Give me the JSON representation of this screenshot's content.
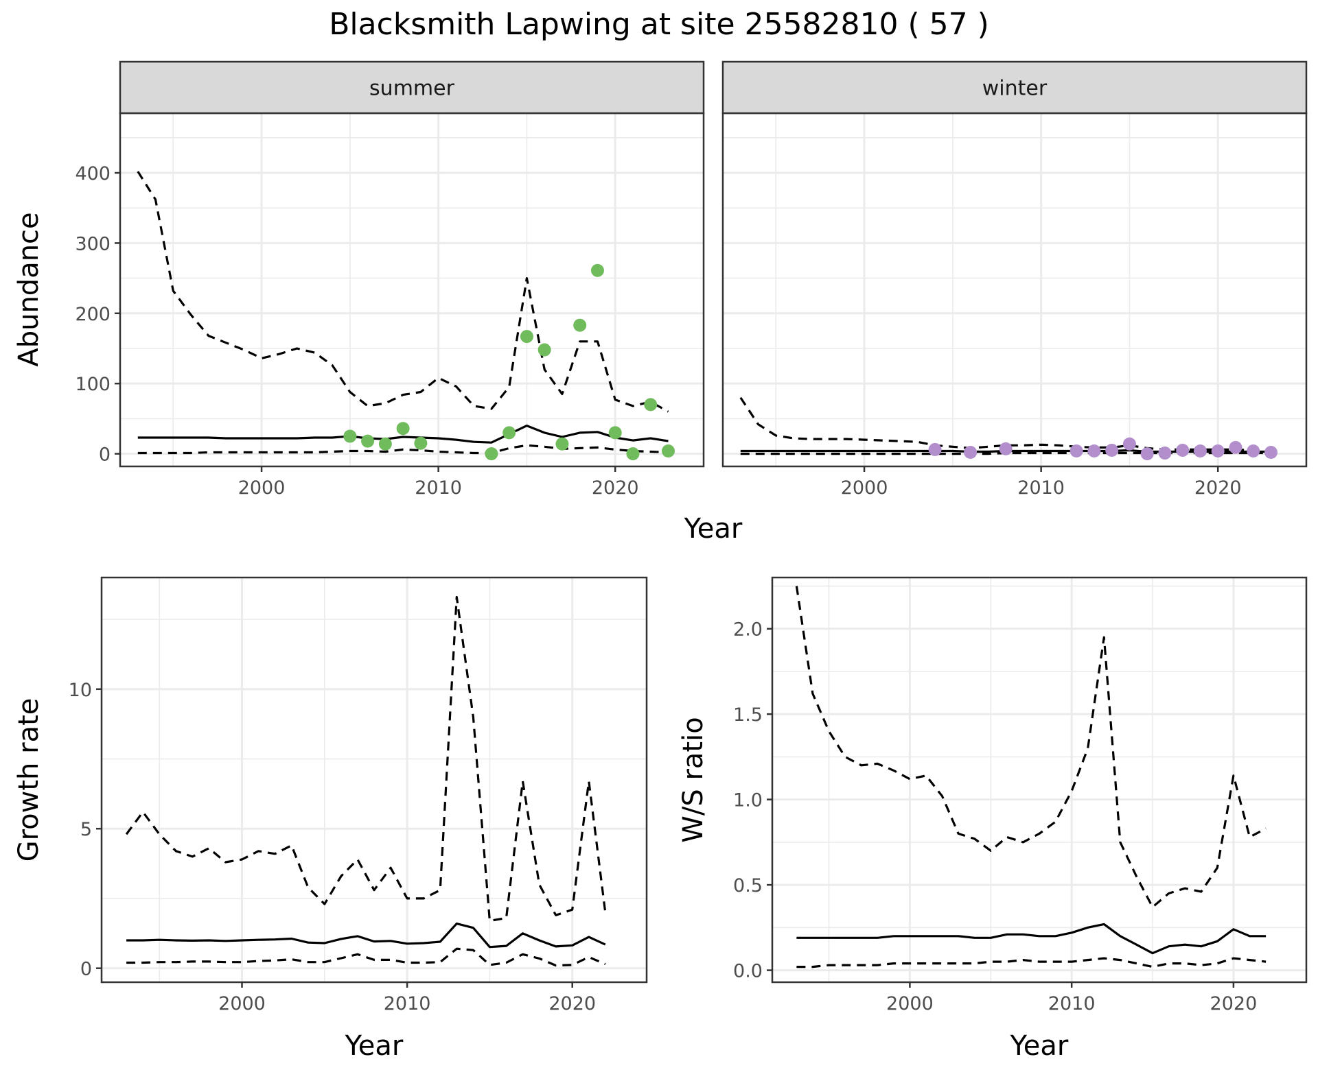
{
  "title": "Blacksmith Lapwing at site 25582810 ( 57 )",
  "colors": {
    "summer_points": "#70bb5c",
    "winter_points": "#b28fcc",
    "lines": "#000000",
    "panel_border": "#333333",
    "strip_fill": "#d9d9d9",
    "grid": "#ebebeb"
  },
  "chart_data": [
    {
      "type": "line",
      "facet": "summer",
      "xlabel": "Year",
      "ylabel": "Abundance",
      "xlim": [
        1992,
        2025
      ],
      "ylim": [
        -18,
        485
      ],
      "x_ticks": [
        2000,
        2010,
        2020
      ],
      "y_ticks": [
        0,
        100,
        200,
        300,
        400
      ],
      "grid": true,
      "series": [
        {
          "style": "solid",
          "x": [
            1993,
            1994,
            1995,
            1996,
            1997,
            1998,
            1999,
            2000,
            2001,
            2002,
            2003,
            2004,
            2005,
            2006,
            2007,
            2008,
            2009,
            2010,
            2011,
            2012,
            2013,
            2014,
            2015,
            2016,
            2017,
            2018,
            2019,
            2020,
            2021,
            2022,
            2023
          ],
          "y": [
            23,
            23,
            23,
            23,
            23,
            22,
            22,
            22,
            22,
            22,
            23,
            23,
            25,
            22,
            21,
            24,
            23,
            22,
            20,
            17,
            16,
            28,
            40,
            30,
            24,
            30,
            31,
            23,
            19,
            22,
            18
          ]
        },
        {
          "style": "dashed",
          "x": [
            1993,
            1994,
            1995,
            1996,
            1997,
            1998,
            1999,
            2000,
            2001,
            2002,
            2003,
            2004,
            2005,
            2006,
            2007,
            2008,
            2009,
            2010,
            2011,
            2012,
            2013,
            2014,
            2015,
            2016,
            2017,
            2018,
            2019,
            2020,
            2021,
            2022,
            2023
          ],
          "y": [
            402,
            362,
            232,
            198,
            168,
            158,
            148,
            136,
            142,
            150,
            144,
            126,
            88,
            68,
            72,
            84,
            88,
            108,
            96,
            68,
            64,
            95,
            250,
            120,
            85,
            160,
            160,
            77,
            68,
            74,
            60
          ]
        },
        {
          "style": "dashed",
          "x": [
            1993,
            1994,
            1995,
            1996,
            1997,
            1998,
            1999,
            2000,
            2001,
            2002,
            2003,
            2004,
            2005,
            2006,
            2007,
            2008,
            2009,
            2010,
            2011,
            2012,
            2013,
            2014,
            2015,
            2016,
            2017,
            2018,
            2019,
            2020,
            2021,
            2022,
            2023
          ],
          "y": [
            1,
            1,
            1,
            1,
            2,
            2,
            2,
            2,
            2,
            2,
            2,
            3,
            4,
            4,
            3,
            6,
            5,
            3,
            2,
            1,
            1,
            8,
            12,
            10,
            7,
            8,
            9,
            6,
            4,
            3,
            2
          ]
        },
        {
          "style": "points",
          "x": [
            2005,
            2006,
            2007,
            2008,
            2009,
            2013,
            2014,
            2015,
            2016,
            2017,
            2018,
            2019,
            2020,
            2021,
            2022,
            2023
          ],
          "y": [
            25,
            18,
            14,
            36,
            15,
            0,
            30,
            167,
            148,
            14,
            183,
            261,
            30,
            0,
            70,
            4
          ]
        }
      ]
    },
    {
      "type": "line",
      "facet": "winter",
      "xlabel": "Year",
      "ylabel": "Abundance",
      "xlim": [
        1992,
        2025
      ],
      "ylim": [
        -18,
        485
      ],
      "x_ticks": [
        2000,
        2010,
        2020
      ],
      "y_ticks": [
        0,
        100,
        200,
        300,
        400
      ],
      "grid": true,
      "series": [
        {
          "style": "solid",
          "x": [
            1993,
            1994,
            1995,
            1996,
            1997,
            1998,
            1999,
            2000,
            2001,
            2002,
            2003,
            2004,
            2005,
            2006,
            2007,
            2008,
            2009,
            2010,
            2011,
            2012,
            2013,
            2014,
            2015,
            2016,
            2017,
            2018,
            2019,
            2020,
            2021,
            2022,
            2023
          ],
          "y": [
            4,
            4,
            4,
            4,
            4,
            4,
            4,
            4,
            4,
            4,
            4,
            4,
            4,
            3,
            3,
            4,
            4,
            4,
            4,
            4,
            4,
            4,
            5,
            3,
            3,
            3,
            3,
            3,
            3,
            3,
            3
          ]
        },
        {
          "style": "dashed",
          "x": [
            1993,
            1994,
            1995,
            1996,
            1997,
            1998,
            1999,
            2000,
            2001,
            2002,
            2003,
            2004,
            2005,
            2006,
            2007,
            2008,
            2009,
            2010,
            2011,
            2012,
            2013,
            2014,
            2015,
            2016,
            2017,
            2018,
            2019,
            2020,
            2021,
            2022,
            2023
          ],
          "y": [
            80,
            42,
            26,
            22,
            21,
            21,
            21,
            20,
            19,
            18,
            17,
            12,
            10,
            8,
            10,
            12,
            12,
            13,
            12,
            10,
            9,
            9,
            12,
            8,
            6,
            6,
            6,
            6,
            6,
            5,
            5
          ]
        },
        {
          "style": "dashed",
          "x": [
            1993,
            1994,
            1995,
            1996,
            1997,
            1998,
            1999,
            2000,
            2001,
            2002,
            2003,
            2004,
            2005,
            2006,
            2007,
            2008,
            2009,
            2010,
            2011,
            2012,
            2013,
            2014,
            2015,
            2016,
            2017,
            2018,
            2019,
            2020,
            2021,
            2022,
            2023
          ],
          "y": [
            0,
            0,
            0,
            0,
            0,
            0,
            0,
            0,
            0,
            0,
            0,
            0,
            0,
            0,
            0,
            1,
            1,
            1,
            1,
            1,
            1,
            1,
            1,
            1,
            1,
            1,
            1,
            1,
            1,
            1,
            1
          ]
        },
        {
          "style": "points",
          "x": [
            2004,
            2006,
            2008,
            2012,
            2013,
            2014,
            2015,
            2016,
            2017,
            2018,
            2019,
            2020,
            2021,
            2022,
            2023
          ],
          "y": [
            6,
            2,
            7,
            4,
            4,
            5,
            14,
            0,
            1,
            5,
            4,
            4,
            9,
            4,
            2
          ]
        }
      ]
    },
    {
      "type": "line",
      "xlabel": "Year",
      "ylabel": "Growth rate",
      "xlim": [
        1991.5,
        2024.5
      ],
      "ylim": [
        -0.5,
        14.0
      ],
      "x_ticks": [
        2000,
        2010,
        2020
      ],
      "y_ticks": [
        0,
        5,
        10
      ],
      "grid": true,
      "series": [
        {
          "style": "solid",
          "x": [
            1993,
            1994,
            1995,
            1996,
            1997,
            1998,
            1999,
            2000,
            2001,
            2002,
            2003,
            2004,
            2005,
            2006,
            2007,
            2008,
            2009,
            2010,
            2011,
            2012,
            2013,
            2014,
            2015,
            2016,
            2017,
            2018,
            2019,
            2020,
            2021,
            2022
          ],
          "y": [
            1.0,
            1.0,
            1.02,
            1.0,
            0.99,
            1.0,
            0.98,
            1.0,
            1.02,
            1.03,
            1.06,
            0.92,
            0.9,
            1.05,
            1.15,
            0.96,
            0.98,
            0.88,
            0.9,
            0.95,
            1.6,
            1.45,
            0.76,
            0.8,
            1.25,
            1.0,
            0.78,
            0.82,
            1.12,
            0.85
          ]
        },
        {
          "style": "dashed",
          "x": [
            1993,
            1994,
            1995,
            1996,
            1997,
            1998,
            1999,
            2000,
            2001,
            2002,
            2003,
            2004,
            2005,
            2006,
            2007,
            2008,
            2009,
            2010,
            2011,
            2012,
            2013,
            2014,
            2015,
            2016,
            2017,
            2018,
            2019,
            2020,
            2021,
            2022
          ],
          "y": [
            4.8,
            5.6,
            4.8,
            4.2,
            4.0,
            4.3,
            3.8,
            3.9,
            4.2,
            4.1,
            4.4,
            2.9,
            2.3,
            3.3,
            3.9,
            2.8,
            3.6,
            2.5,
            2.5,
            2.8,
            13.3,
            9.0,
            1.7,
            1.8,
            6.7,
            3.0,
            1.9,
            2.1,
            6.7,
            2.0
          ]
        },
        {
          "style": "dashed",
          "x": [
            1993,
            1994,
            1995,
            1996,
            1997,
            1998,
            1999,
            2000,
            2001,
            2002,
            2003,
            2004,
            2005,
            2006,
            2007,
            2008,
            2009,
            2010,
            2011,
            2012,
            2013,
            2014,
            2015,
            2016,
            2017,
            2018,
            2019,
            2020,
            2021,
            2022
          ],
          "y": [
            0.2,
            0.2,
            0.22,
            0.22,
            0.24,
            0.24,
            0.22,
            0.22,
            0.26,
            0.28,
            0.32,
            0.22,
            0.22,
            0.36,
            0.5,
            0.3,
            0.3,
            0.2,
            0.2,
            0.22,
            0.7,
            0.65,
            0.12,
            0.2,
            0.5,
            0.35,
            0.1,
            0.12,
            0.4,
            0.15
          ]
        }
      ]
    },
    {
      "type": "line",
      "xlabel": "Year",
      "ylabel": "W/S ratio",
      "xlim": [
        1991.5,
        2024.5
      ],
      "ylim": [
        -0.07,
        2.3
      ],
      "x_ticks": [
        2000,
        2010,
        2020
      ],
      "y_ticks": [
        0.0,
        0.5,
        1.0,
        1.5,
        2.0
      ],
      "y_tick_labels": [
        "0.0",
        "0.5",
        "1.0",
        "1.5",
        "2.0"
      ],
      "grid": true,
      "series": [
        {
          "style": "solid",
          "x": [
            1993,
            1994,
            1995,
            1996,
            1997,
            1998,
            1999,
            2000,
            2001,
            2002,
            2003,
            2004,
            2005,
            2006,
            2007,
            2008,
            2009,
            2010,
            2011,
            2012,
            2013,
            2014,
            2015,
            2016,
            2017,
            2018,
            2019,
            2020,
            2021,
            2022
          ],
          "y": [
            0.19,
            0.19,
            0.19,
            0.19,
            0.19,
            0.19,
            0.2,
            0.2,
            0.2,
            0.2,
            0.2,
            0.19,
            0.19,
            0.21,
            0.21,
            0.2,
            0.2,
            0.22,
            0.25,
            0.27,
            0.2,
            0.15,
            0.1,
            0.14,
            0.15,
            0.14,
            0.17,
            0.24,
            0.2,
            0.2
          ]
        },
        {
          "style": "dashed",
          "x": [
            1993,
            1994,
            1995,
            1996,
            1997,
            1998,
            1999,
            2000,
            2001,
            2002,
            2003,
            2004,
            2005,
            2006,
            2007,
            2008,
            2009,
            2010,
            2011,
            2012,
            2013,
            2014,
            2015,
            2016,
            2017,
            2018,
            2019,
            2020,
            2021,
            2022
          ],
          "y": [
            2.25,
            1.62,
            1.4,
            1.25,
            1.2,
            1.21,
            1.17,
            1.12,
            1.14,
            1.02,
            0.8,
            0.77,
            0.7,
            0.78,
            0.75,
            0.8,
            0.87,
            1.05,
            1.3,
            1.95,
            0.75,
            0.55,
            0.37,
            0.45,
            0.48,
            0.46,
            0.6,
            1.14,
            0.78,
            0.83
          ]
        },
        {
          "style": "dashed",
          "x": [
            1993,
            1994,
            1995,
            1996,
            1997,
            1998,
            1999,
            2000,
            2001,
            2002,
            2003,
            2004,
            2005,
            2006,
            2007,
            2008,
            2009,
            2010,
            2011,
            2012,
            2013,
            2014,
            2015,
            2016,
            2017,
            2018,
            2019,
            2020,
            2021,
            2022
          ],
          "y": [
            0.02,
            0.02,
            0.03,
            0.03,
            0.03,
            0.03,
            0.04,
            0.04,
            0.04,
            0.04,
            0.04,
            0.04,
            0.05,
            0.05,
            0.06,
            0.05,
            0.05,
            0.05,
            0.06,
            0.07,
            0.06,
            0.04,
            0.02,
            0.04,
            0.04,
            0.03,
            0.04,
            0.07,
            0.06,
            0.05
          ]
        }
      ]
    }
  ]
}
